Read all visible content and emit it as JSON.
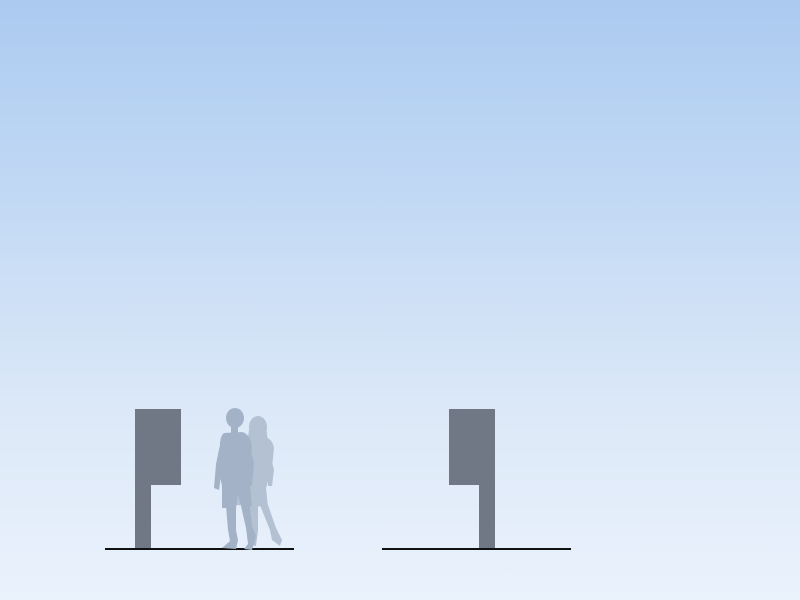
{
  "scene": {
    "description_hidden": "",
    "colors": {
      "sky_top": "#abcaf0",
      "sky_bottom": "#eaf2fc",
      "sign": "#717885",
      "ground": "#111111",
      "person_man": "#a3b2c6",
      "person_woman": "#b3c1d3"
    },
    "elements": {
      "sign_left": "sign-post",
      "sign_right": "sign-post",
      "people": "walking-couple"
    }
  }
}
